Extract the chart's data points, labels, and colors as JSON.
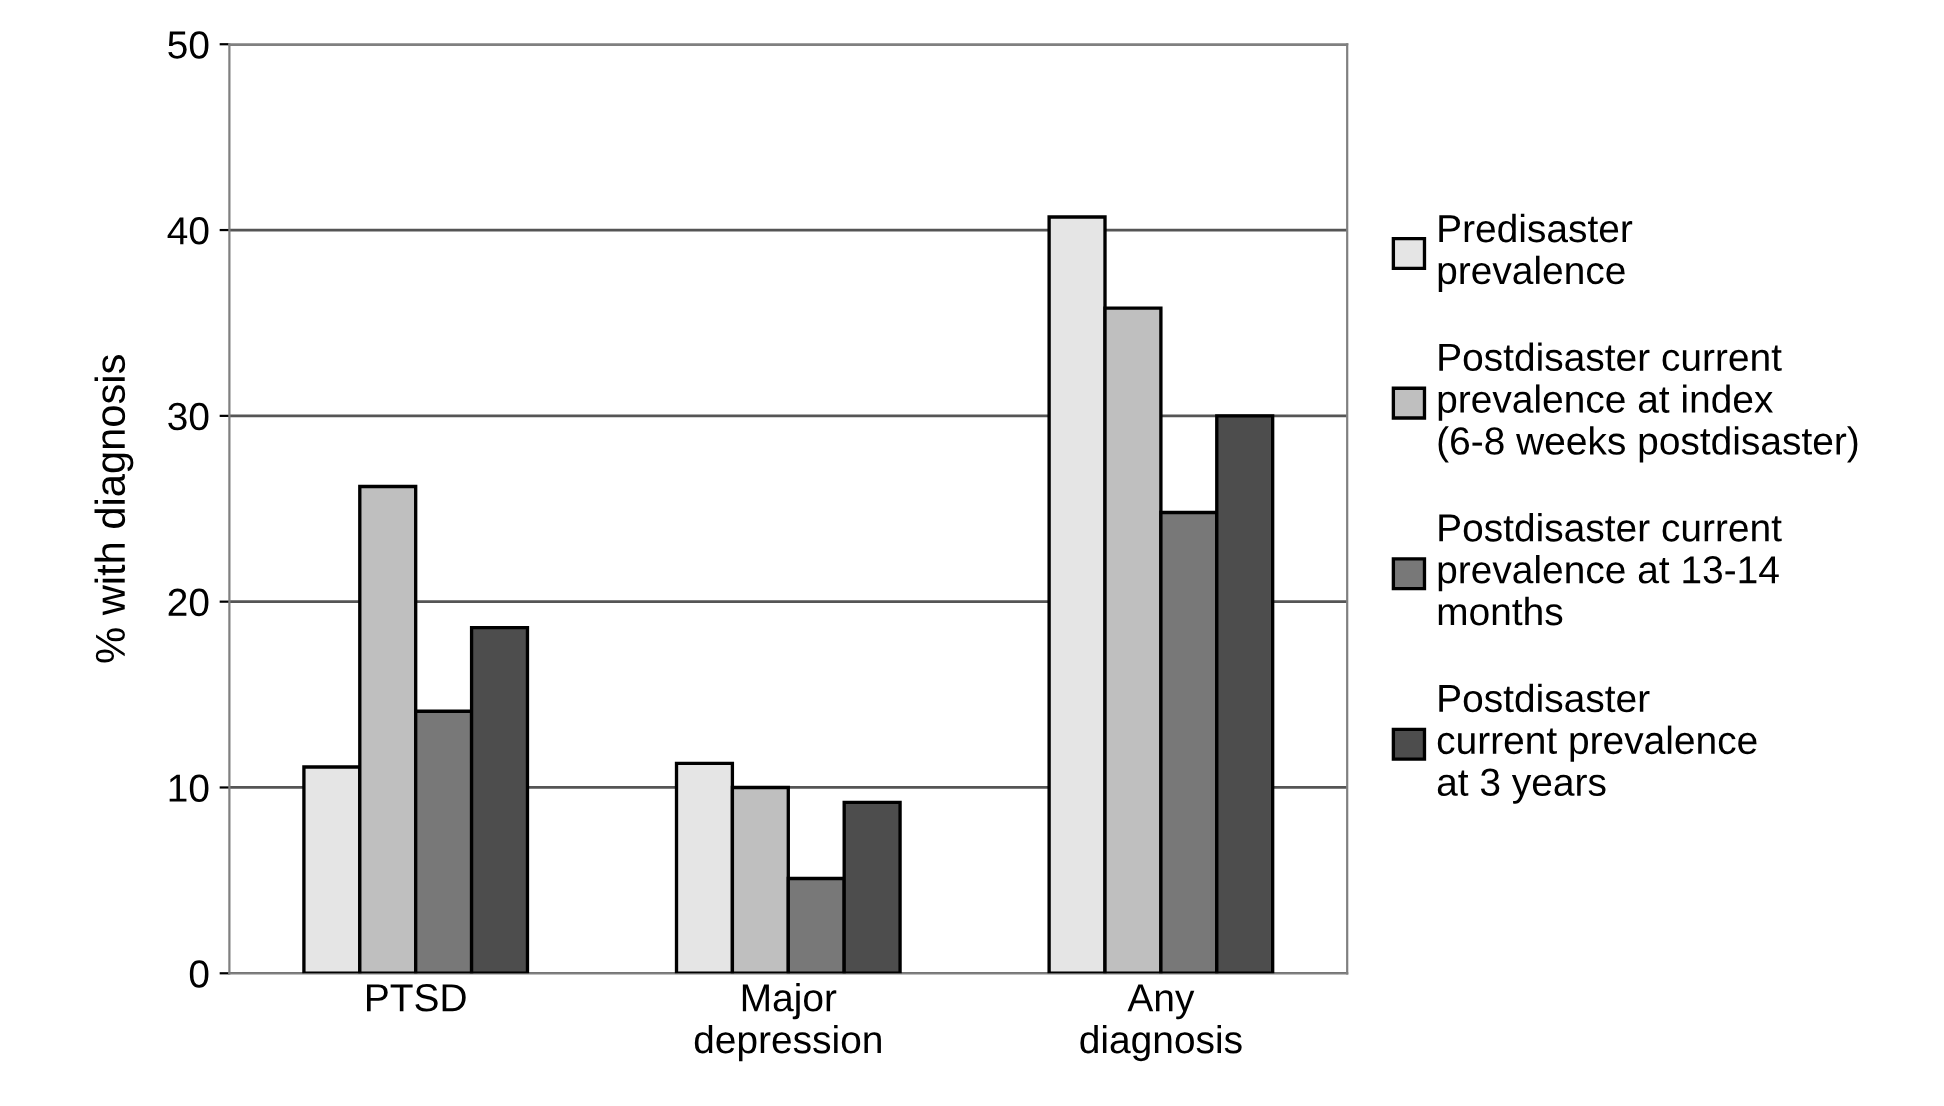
{
  "chart_data": {
    "type": "bar",
    "ylabel": "% with diagnosis",
    "categories": [
      "PTSD",
      "Major\ndepression",
      "Any\ndiagnosis"
    ],
    "series": [
      {
        "name": "Predisaster\nprevalence",
        "color": "#e5e5e5",
        "values": [
          11.1,
          11.3,
          40.7
        ]
      },
      {
        "name": "Postdisaster current\nprevalence at index\n(6-8 weeks postdisaster)",
        "color": "#bfbfbf",
        "values": [
          26.2,
          10.0,
          35.8
        ]
      },
      {
        "name": "Postdisaster current\nprevalence at 13-14\nmonths",
        "color": "#787878",
        "values": [
          14.1,
          5.1,
          24.8
        ]
      },
      {
        "name": "Postdisaster\ncurrent prevalence\nat 3 years",
        "color": "#4d4d4d",
        "values": [
          18.6,
          9.2,
          30.0
        ]
      }
    ],
    "ylim": [
      0,
      50
    ],
    "yticks": [
      0,
      10,
      20,
      30,
      40,
      50
    ],
    "grid": "y",
    "legend": "right"
  }
}
